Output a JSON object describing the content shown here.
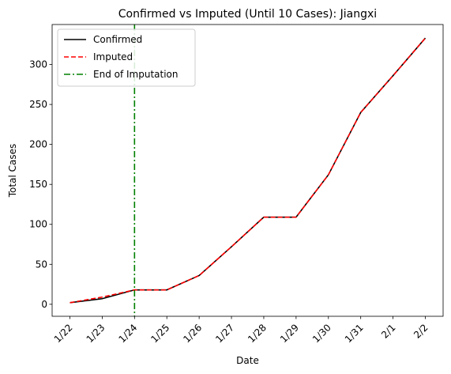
{
  "chart_data": {
    "type": "line",
    "title": "Confirmed vs Imputed (Until 10 Cases): Jiangxi",
    "xlabel": "Date",
    "ylabel": "Total Cases",
    "categories": [
      "1/22",
      "1/23",
      "1/24",
      "1/25",
      "1/26",
      "1/27",
      "1/28",
      "1/29",
      "1/30",
      "1/31",
      "2/1",
      "2/2"
    ],
    "ylim": [
      -15,
      350
    ],
    "yticks": [
      0,
      50,
      100,
      150,
      200,
      250,
      300
    ],
    "grid": false,
    "legend_position": "top-left",
    "series": [
      {
        "name": "Confirmed",
        "color": "#000000",
        "style": "solid",
        "values": [
          2,
          7,
          18,
          18,
          36,
          72,
          109,
          109,
          162,
          240,
          286,
          333
        ]
      },
      {
        "name": "Imputed",
        "color": "#ff0000",
        "style": "dashed",
        "values": [
          2,
          9,
          18,
          18,
          36,
          72,
          109,
          109,
          162,
          240,
          286,
          333
        ]
      }
    ],
    "vertical_line": {
      "name": "End of Imputation",
      "category": "1/24",
      "color": "#008000",
      "style": "dashdot"
    }
  }
}
